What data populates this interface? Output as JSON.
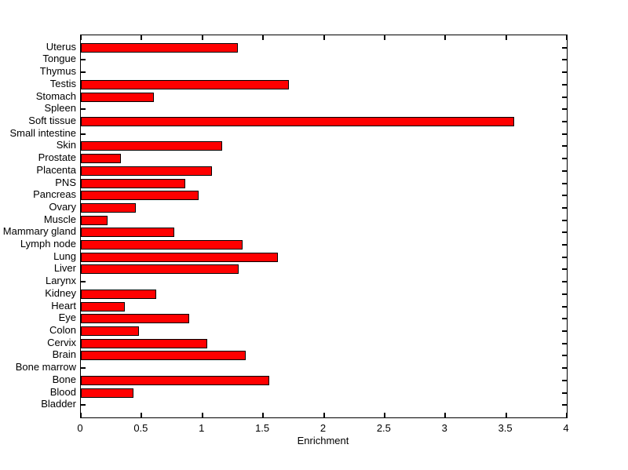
{
  "chart_data": {
    "type": "bar",
    "orientation": "horizontal",
    "title": "",
    "xlabel": "Enrichment",
    "ylabel": "",
    "xlim": [
      0,
      4
    ],
    "x_ticks": [
      0,
      0.5,
      1,
      1.5,
      2,
      2.5,
      3,
      3.5,
      4
    ],
    "grid": false,
    "legend": null,
    "bar_color": "#FF0000",
    "bar_edge_color": "#000000",
    "axis_color": "#000000",
    "background_color": "#FFFFFF",
    "categories": [
      "Uterus",
      "Tongue",
      "Thymus",
      "Testis",
      "Stomach",
      "Spleen",
      "Soft tissue",
      "Small intestine",
      "Skin",
      "Prostate",
      "Placenta",
      "PNS",
      "Pancreas",
      "Ovary",
      "Muscle",
      "Mammary gland",
      "Lymph node",
      "Lung",
      "Liver",
      "Larynx",
      "Kidney",
      "Heart",
      "Eye",
      "Colon",
      "Cervix",
      "Brain",
      "Bone marrow",
      "Bone",
      "Blood",
      "Bladder"
    ],
    "values": [
      1.29,
      0,
      0,
      1.71,
      0.6,
      0,
      3.57,
      0,
      1.16,
      0.33,
      1.08,
      0.86,
      0.97,
      0.45,
      0.22,
      0.77,
      1.33,
      1.62,
      1.3,
      0,
      0.62,
      0.36,
      0.89,
      0.48,
      1.04,
      1.36,
      0,
      1.55,
      0.43,
      0
    ]
  }
}
